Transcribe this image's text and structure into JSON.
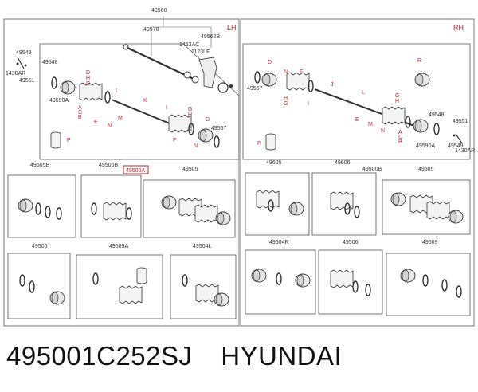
{
  "header": {
    "lh": "LH",
    "rh": "RH"
  },
  "callouts": {
    "c49560": "49560",
    "c49570": "49570",
    "c1463AC": "1463AC",
    "c49562B": "49562B",
    "c1123LF": "1123LF",
    "c49549a": "49549",
    "c1430ARa": "1430AR",
    "c49551a": "49551",
    "c49548a": "49548",
    "c49590Aa": "49590A",
    "c49557a": "49557",
    "c49557r": "49557",
    "c49548r": "49548",
    "c49551r": "49551",
    "c49549r": "49549",
    "c1430ARr": "1430AR",
    "c49590Ar": "49590A",
    "b1": "49505B",
    "b2": "49506B",
    "b3": "49500A",
    "b4": "49505",
    "b5": "49605",
    "b6": "49606",
    "b7": "49500B",
    "b8": "49505",
    "b9": "49506",
    "b10": "49509A",
    "b11": "49504L",
    "b12": "49504R",
    "b13": "49506",
    "b14": "49609"
  },
  "letters": {
    "D": "D",
    "H": "H",
    "G": "G",
    "I": "I",
    "E": "E",
    "C": "C",
    "B": "B",
    "A": "A",
    "F": "F",
    "N": "N",
    "M": "M",
    "L": "L",
    "K": "K",
    "J": "J",
    "R": "R",
    "P": "P"
  },
  "footer": {
    "part_number": "495001C252SJ",
    "brand": "HYUNDAI"
  }
}
